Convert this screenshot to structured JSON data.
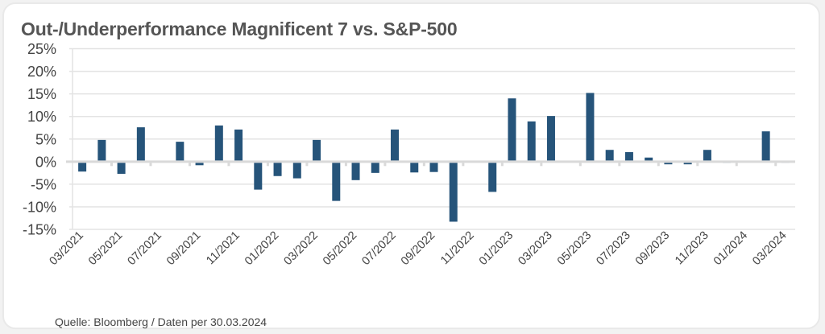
{
  "chart_data": {
    "type": "bar",
    "title": "Out-/Underperformance Magnificent 7 vs. S&P-500",
    "xlabel": "",
    "ylabel": "",
    "ylim": [
      -15,
      25
    ],
    "yticks": [
      25,
      20,
      15,
      10,
      5,
      0,
      -5,
      -10,
      -15
    ],
    "ytick_labels": [
      "25%",
      "20%",
      "15%",
      "10%",
      "5%",
      "0%",
      "-5%",
      "-10%",
      "-15%"
    ],
    "grid": true,
    "legend": "none",
    "categories": [
      "03/2021",
      "04/2021",
      "05/2021",
      "06/2021",
      "07/2021",
      "08/2021",
      "09/2021",
      "10/2021",
      "11/2021",
      "12/2021",
      "01/2022",
      "02/2022",
      "03/2022",
      "04/2022",
      "05/2022",
      "06/2022",
      "07/2022",
      "08/2022",
      "09/2022",
      "10/2022",
      "11/2022",
      "12/2022",
      "01/2023",
      "02/2023",
      "03/2023",
      "04/2023",
      "05/2023",
      "06/2023",
      "07/2023",
      "08/2023",
      "09/2023",
      "10/2023",
      "11/2023",
      "12/2023",
      "01/2024",
      "02/2024",
      "03/2024"
    ],
    "xtick_labels": [
      "03/2021",
      "05/2021",
      "07/2021",
      "09/2021",
      "11/2021",
      "01/2022",
      "03/2022",
      "05/2022",
      "07/2022",
      "09/2022",
      "11/2022",
      "01/2023",
      "03/2023",
      "05/2023",
      "07/2023",
      "09/2023",
      "11/2023",
      "01/2024",
      "03/2024"
    ],
    "series": [
      {
        "name": "Out-/Underperformance",
        "color": "#26547a",
        "values": [
          -2.2,
          4.8,
          -2.7,
          7.6,
          0,
          4.4,
          -0.8,
          8.0,
          7.1,
          -6.2,
          -3.2,
          -3.7,
          4.8,
          -8.7,
          -4.1,
          -2.5,
          7.1,
          -2.4,
          -2.3,
          -13.3,
          0,
          -6.7,
          14.0,
          8.9,
          10.1,
          0,
          15.2,
          2.6,
          2.1,
          0.9,
          -0.6,
          -0.6,
          2.6,
          -0.3,
          0,
          6.7,
          -0.2
        ]
      }
    ]
  },
  "footer": {
    "source": "Quelle: Bloomberg / Daten per 30.03.2024"
  },
  "colors": {
    "bar": "#26547a",
    "grid": "#e3e3e3",
    "axis": "#d9d9d9",
    "text": "#444444",
    "title": "#555555"
  }
}
